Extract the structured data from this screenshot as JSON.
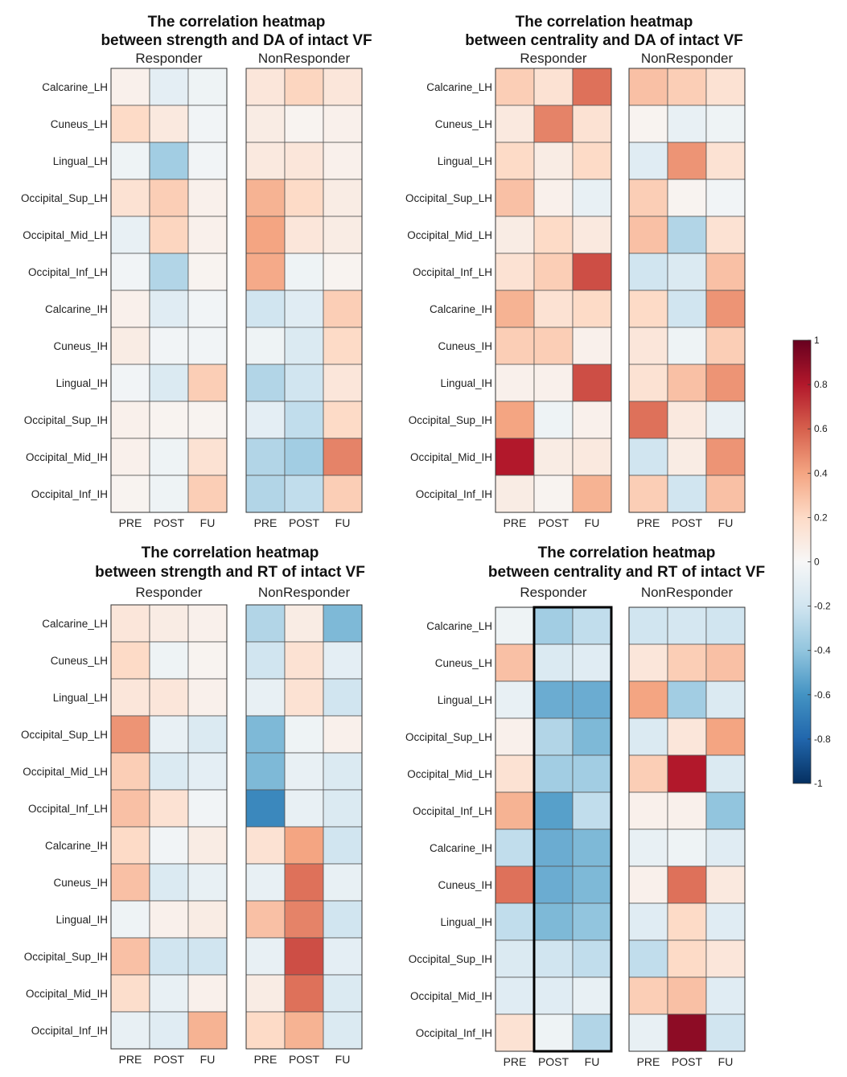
{
  "chart_data": [
    {
      "type": "heatmap",
      "title_line1": "The correlation heatmap",
      "title_line2": "between strength and DA of intact VF",
      "groups": [
        "Responder",
        "NonResponder"
      ],
      "rows": [
        "Calcarine_LH",
        "Cuneus_LH",
        "Lingual_LH",
        "Occipital_Sup_LH",
        "Occipital_Mid_LH",
        "Occipital_Inf_LH",
        "Calcarine_IH",
        "Cuneus_IH",
        "Lingual_IH",
        "Occipital_Sup_IH",
        "Occipital_Mid_IH",
        "Occipital_Inf_IH"
      ],
      "columns": [
        "PRE",
        "POST",
        "FU"
      ],
      "values": {
        "Responder": [
          [
            0.05,
            -0.1,
            -0.05
          ],
          [
            0.2,
            0.1,
            -0.03
          ],
          [
            -0.05,
            -0.35,
            -0.03
          ],
          [
            0.15,
            0.25,
            0.05
          ],
          [
            -0.08,
            0.22,
            0.05
          ],
          [
            -0.03,
            -0.3,
            0.03
          ],
          [
            0.05,
            -0.12,
            -0.03
          ],
          [
            0.08,
            -0.03,
            -0.03
          ],
          [
            -0.03,
            -0.15,
            0.25
          ],
          [
            0.05,
            0.03,
            0.03
          ],
          [
            0.05,
            -0.05,
            0.15
          ],
          [
            0.03,
            -0.05,
            0.25
          ]
        ],
        "NonResponder": [
          [
            0.12,
            0.22,
            0.12
          ],
          [
            0.08,
            0.03,
            0.05
          ],
          [
            0.1,
            0.12,
            0.05
          ],
          [
            0.35,
            0.2,
            0.08
          ],
          [
            0.4,
            0.12,
            0.08
          ],
          [
            0.38,
            -0.05,
            0.03
          ],
          [
            -0.2,
            -0.12,
            0.25
          ],
          [
            -0.05,
            -0.15,
            0.2
          ],
          [
            -0.3,
            -0.2,
            0.12
          ],
          [
            -0.1,
            -0.25,
            0.2
          ],
          [
            -0.3,
            -0.35,
            0.5
          ],
          [
            -0.3,
            -0.25,
            0.25
          ]
        ]
      }
    },
    {
      "type": "heatmap",
      "title_line1": "The correlation heatmap",
      "title_line2": "between centrality and DA of intact VF",
      "groups": [
        "Responder",
        "NonResponder"
      ],
      "rows": [
        "Calcarine_LH",
        "Cuneus_LH",
        "Lingual_LH",
        "Occipital_Sup_LH",
        "Occipital_Mid_LH",
        "Occipital_Inf_LH",
        "Calcarine_IH",
        "Cuneus_IH",
        "Lingual_IH",
        "Occipital_Sup_IH",
        "Occipital_Mid_IH",
        "Occipital_Inf_IH"
      ],
      "columns": [
        "PRE",
        "POST",
        "FU"
      ],
      "values": {
        "Responder": [
          [
            0.25,
            0.15,
            0.55
          ],
          [
            0.1,
            0.5,
            0.15
          ],
          [
            0.2,
            0.08,
            0.2
          ],
          [
            0.3,
            0.05,
            -0.08
          ],
          [
            0.08,
            0.2,
            0.1
          ],
          [
            0.15,
            0.25,
            0.65
          ],
          [
            0.35,
            0.15,
            0.2
          ],
          [
            0.25,
            0.25,
            0.05
          ],
          [
            0.05,
            0.05,
            0.65
          ],
          [
            0.4,
            -0.05,
            0.05
          ],
          [
            0.8,
            0.08,
            0.1
          ],
          [
            0.08,
            0.03,
            0.35
          ]
        ],
        "NonResponder": [
          [
            0.3,
            0.25,
            0.15
          ],
          [
            0.03,
            -0.08,
            -0.05
          ],
          [
            -0.12,
            0.45,
            0.15
          ],
          [
            0.25,
            0.03,
            -0.03
          ],
          [
            0.3,
            -0.3,
            0.15
          ],
          [
            -0.2,
            -0.15,
            0.3
          ],
          [
            0.2,
            -0.2,
            0.45
          ],
          [
            0.12,
            -0.05,
            0.25
          ],
          [
            0.15,
            0.3,
            0.45
          ],
          [
            0.55,
            0.1,
            -0.08
          ],
          [
            -0.2,
            0.08,
            0.45
          ],
          [
            0.25,
            -0.2,
            0.3
          ]
        ]
      }
    },
    {
      "type": "heatmap",
      "title_line1": "The correlation heatmap",
      "title_line2": "between strength and RT of intact VF",
      "groups": [
        "Responder",
        "NonResponder"
      ],
      "rows": [
        "Calcarine_LH",
        "Cuneus_LH",
        "Lingual_LH",
        "Occipital_Sup_LH",
        "Occipital_Mid_LH",
        "Occipital_Inf_LH",
        "Calcarine_IH",
        "Cuneus_IH",
        "Lingual_IH",
        "Occipital_Sup_IH",
        "Occipital_Mid_IH",
        "Occipital_Inf_IH"
      ],
      "columns": [
        "PRE",
        "POST",
        "FU"
      ],
      "values": {
        "Responder": [
          [
            0.12,
            0.08,
            0.05
          ],
          [
            0.2,
            -0.05,
            0.03
          ],
          [
            0.12,
            0.12,
            0.05
          ],
          [
            0.45,
            -0.08,
            -0.15
          ],
          [
            0.25,
            -0.15,
            -0.1
          ],
          [
            0.3,
            0.15,
            -0.03
          ],
          [
            0.2,
            -0.03,
            0.08
          ],
          [
            0.3,
            -0.15,
            -0.08
          ],
          [
            -0.05,
            0.05,
            0.08
          ],
          [
            0.3,
            -0.2,
            -0.2
          ],
          [
            0.18,
            -0.08,
            0.05
          ],
          [
            -0.08,
            -0.12,
            0.35
          ]
        ],
        "NonResponder": [
          [
            -0.3,
            0.08,
            -0.45
          ],
          [
            -0.2,
            0.15,
            -0.1
          ],
          [
            -0.08,
            0.15,
            -0.2
          ],
          [
            -0.45,
            -0.05,
            0.05
          ],
          [
            -0.45,
            -0.08,
            -0.15
          ],
          [
            -0.65,
            -0.08,
            -0.15
          ],
          [
            0.15,
            0.4,
            -0.2
          ],
          [
            -0.08,
            0.55,
            -0.08
          ],
          [
            0.3,
            0.5,
            -0.2
          ],
          [
            -0.08,
            0.65,
            -0.1
          ],
          [
            0.08,
            0.55,
            -0.15
          ],
          [
            0.2,
            0.35,
            -0.15
          ]
        ]
      }
    },
    {
      "type": "heatmap",
      "title_line1": "The correlation heatmap",
      "title_line2": "between centrality and RT of intact VF",
      "groups": [
        "Responder",
        "NonResponder"
      ],
      "rows": [
        "Calcarine_LH",
        "Cuneus_LH",
        "Lingual_LH",
        "Occipital_Sup_LH",
        "Occipital_Mid_LH",
        "Occipital_Inf_LH",
        "Calcarine_IH",
        "Cuneus_IH",
        "Lingual_IH",
        "Occipital_Sup_IH",
        "Occipital_Mid_IH",
        "Occipital_Inf_IH"
      ],
      "columns": [
        "PRE",
        "POST",
        "FU"
      ],
      "highlight": {
        "group": "Responder",
        "columns": [
          "POST",
          "FU"
        ]
      },
      "values": {
        "Responder": [
          [
            -0.05,
            -0.35,
            -0.25
          ],
          [
            0.3,
            -0.15,
            -0.12
          ],
          [
            -0.08,
            -0.5,
            -0.5
          ],
          [
            0.05,
            -0.3,
            -0.45
          ],
          [
            0.15,
            -0.35,
            -0.35
          ],
          [
            0.35,
            -0.55,
            -0.25
          ],
          [
            -0.25,
            -0.5,
            -0.45
          ],
          [
            0.55,
            -0.5,
            -0.45
          ],
          [
            -0.25,
            -0.45,
            -0.4
          ],
          [
            -0.15,
            -0.2,
            -0.25
          ],
          [
            -0.12,
            -0.12,
            -0.08
          ],
          [
            0.15,
            -0.05,
            -0.3
          ]
        ],
        "NonResponder": [
          [
            -0.2,
            -0.18,
            -0.2
          ],
          [
            0.12,
            0.25,
            0.3
          ],
          [
            0.4,
            -0.35,
            -0.15
          ],
          [
            -0.15,
            0.12,
            0.4
          ],
          [
            0.25,
            0.8,
            -0.15
          ],
          [
            0.05,
            0.05,
            -0.4
          ],
          [
            -0.08,
            -0.05,
            -0.12
          ],
          [
            0.05,
            0.55,
            0.1
          ],
          [
            -0.12,
            0.2,
            -0.12
          ],
          [
            -0.25,
            0.2,
            0.12
          ],
          [
            0.25,
            0.3,
            -0.12
          ],
          [
            -0.08,
            0.9,
            -0.2
          ]
        ]
      }
    }
  ],
  "colorbar": {
    "ticks": [
      "1",
      "0.8",
      "0.6",
      "0.4",
      "0.2",
      "0",
      "-0.2",
      "-0.4",
      "-0.6",
      "-0.8",
      "-1"
    ],
    "colormap": [
      "#053061",
      "#2166ac",
      "#4393c3",
      "#92c5de",
      "#d1e5f0",
      "#f7f7f7",
      "#fddbc7",
      "#f4a582",
      "#d6604d",
      "#b2182b",
      "#67001f"
    ]
  }
}
